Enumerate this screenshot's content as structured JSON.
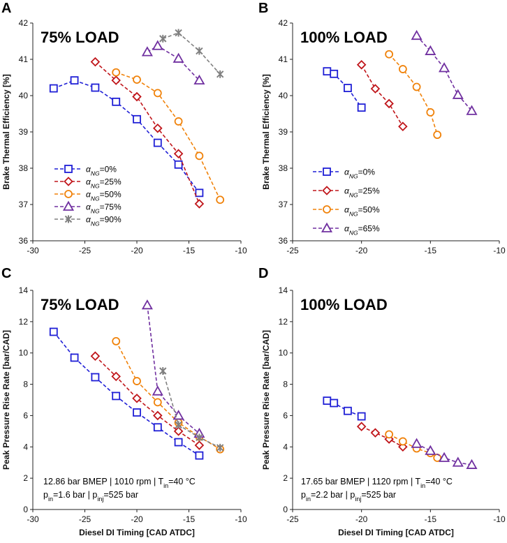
{
  "figure_labels": [
    "A",
    "B",
    "C",
    "D"
  ],
  "conditions_75": {
    "line1_a": "12.86 bar BMEP | 1010 rpm | T",
    "line1_sub": "in",
    "line1_b": "=40 °C",
    "line2_a": "p",
    "line2_sub1": "in",
    "line2_b": "=1.6 bar | p",
    "line2_sub2": "inj",
    "line2_c": "=525 bar"
  },
  "conditions_100": {
    "line1_a": "17.65 bar BMEP | 1120 rpm | T",
    "line1_sub": "in",
    "line1_b": "=40 °C",
    "line2_a": "p",
    "line2_sub1": "in",
    "line2_b": "=2.2 bar | p",
    "line2_sub2": "inj",
    "line2_c": "=525 bar"
  },
  "legend_prefix": "α",
  "legend_sub": "NG",
  "chart_data": [
    {
      "id": "A",
      "type": "line",
      "title": "75% LOAD",
      "xlabel": "",
      "ylabel": "Brake Thermal Efficiency [%]",
      "xlim": [
        -30,
        -10
      ],
      "ylim": [
        36,
        42
      ],
      "xticks": [
        -30,
        -25,
        -20,
        -15,
        -10
      ],
      "yticks": [
        36,
        37,
        38,
        39,
        40,
        41,
        42
      ],
      "legend": true,
      "series": [
        {
          "name": "=0%",
          "color": "#1f1fd6",
          "marker": "square",
          "x": [
            -28,
            -26,
            -24,
            -22,
            -20,
            -18,
            -16,
            -14
          ],
          "y": [
            40.2,
            40.42,
            40.22,
            39.83,
            39.35,
            38.7,
            38.1,
            37.32
          ]
        },
        {
          "name": "=25%",
          "color": "#c0161b",
          "marker": "diamond",
          "x": [
            -24,
            -22,
            -20,
            -18,
            -16,
            -14
          ],
          "y": [
            40.93,
            40.42,
            39.97,
            39.1,
            38.4,
            37.02
          ]
        },
        {
          "name": "=50%",
          "color": "#f0820a",
          "marker": "circle",
          "x": [
            -22,
            -20,
            -18,
            -16,
            -14,
            -12
          ],
          "y": [
            40.64,
            40.44,
            40.07,
            39.29,
            38.34,
            37.13
          ]
        },
        {
          "name": "=75%",
          "color": "#7030a0",
          "marker": "triangle",
          "x": [
            -19,
            -18,
            -16,
            -14
          ],
          "y": [
            41.2,
            41.37,
            41.02,
            40.42
          ]
        },
        {
          "name": "=90%",
          "color": "#808080",
          "marker": "star",
          "x": [
            -17.5,
            -16,
            -14,
            -12
          ],
          "y": [
            41.57,
            41.73,
            41.23,
            40.59
          ]
        }
      ]
    },
    {
      "id": "B",
      "type": "line",
      "title": "100% LOAD",
      "xlabel": "",
      "ylabel": "Brake Thermal Efficiency [%]",
      "xlim": [
        -25,
        -10
      ],
      "ylim": [
        36,
        42
      ],
      "xticks": [
        -25,
        -20,
        -15,
        -10
      ],
      "yticks": [
        36,
        37,
        38,
        39,
        40,
        41,
        42
      ],
      "legend": true,
      "series": [
        {
          "name": "=0%",
          "color": "#1f1fd6",
          "marker": "square",
          "x": [
            -22.5,
            -22,
            -21,
            -20
          ],
          "y": [
            40.67,
            40.6,
            40.21,
            39.67
          ]
        },
        {
          "name": "=25%",
          "color": "#c0161b",
          "marker": "diamond",
          "x": [
            -20,
            -19,
            -18,
            -17
          ],
          "y": [
            40.85,
            40.19,
            39.78,
            39.15
          ]
        },
        {
          "name": "=50%",
          "color": "#f0820a",
          "marker": "circle",
          "x": [
            -18,
            -17,
            -16,
            -15,
            -14.5
          ],
          "y": [
            41.14,
            40.73,
            40.24,
            39.54,
            38.92
          ]
        },
        {
          "name": "=65%",
          "color": "#7030a0",
          "marker": "triangle",
          "x": [
            -16,
            -15,
            -14,
            -13,
            -12
          ],
          "y": [
            41.65,
            41.23,
            40.76,
            40.02,
            39.58
          ]
        }
      ]
    },
    {
      "id": "C",
      "type": "line",
      "title": "75% LOAD",
      "xlabel": "Diesel DI Timing [CAD ATDC]",
      "ylabel": "Peak Pressure Rise Rate [bar/CAD]",
      "xlim": [
        -30,
        -10
      ],
      "ylim": [
        0,
        14
      ],
      "xticks": [
        -30,
        -25,
        -20,
        -15,
        -10
      ],
      "yticks": [
        0,
        2,
        4,
        6,
        8,
        10,
        12,
        14
      ],
      "legend": false,
      "series": [
        {
          "name": "=0%",
          "color": "#1f1fd6",
          "marker": "square",
          "x": [
            -28,
            -26,
            -24,
            -22,
            -20,
            -18,
            -16,
            -14
          ],
          "y": [
            11.35,
            9.7,
            8.45,
            7.25,
            6.2,
            5.25,
            4.3,
            3.45
          ]
        },
        {
          "name": "=25%",
          "color": "#c0161b",
          "marker": "diamond",
          "x": [
            -24,
            -22,
            -20,
            -18,
            -16,
            -14
          ],
          "y": [
            9.8,
            8.5,
            7.1,
            6.0,
            5.0,
            4.1
          ]
        },
        {
          "name": "=50%",
          "color": "#f0820a",
          "marker": "circle",
          "x": [
            -22,
            -20,
            -18,
            -16,
            -14,
            -12
          ],
          "y": [
            10.75,
            8.2,
            6.85,
            5.55,
            4.65,
            3.85
          ]
        },
        {
          "name": "=75%",
          "color": "#7030a0",
          "marker": "triangle",
          "x": [
            -19,
            -18,
            -16,
            -14
          ],
          "y": [
            13.05,
            7.55,
            6.0,
            4.85
          ]
        },
        {
          "name": "=90%",
          "color": "#808080",
          "marker": "star",
          "x": [
            -17.5,
            -16,
            -14,
            -12
          ],
          "y": [
            8.85,
            5.4,
            4.6,
            3.95
          ]
        }
      ]
    },
    {
      "id": "D",
      "type": "line",
      "title": "100% LOAD",
      "xlabel": "Diesel DI Timing [CAD ATDC]",
      "ylabel": "Peak Pressure Rise Rate [bar/CAD]",
      "xlim": [
        -25,
        -10
      ],
      "ylim": [
        0,
        14
      ],
      "xticks": [
        -25,
        -20,
        -15,
        -10
      ],
      "yticks": [
        0,
        2,
        4,
        6,
        8,
        10,
        12,
        14
      ],
      "legend": false,
      "series": [
        {
          "name": "=0%",
          "color": "#1f1fd6",
          "marker": "square",
          "x": [
            -22.5,
            -22,
            -21,
            -20
          ],
          "y": [
            6.95,
            6.8,
            6.3,
            5.95
          ]
        },
        {
          "name": "=25%",
          "color": "#c0161b",
          "marker": "diamond",
          "x": [
            -20,
            -19,
            -18,
            -17
          ],
          "y": [
            5.3,
            4.9,
            4.5,
            4.0
          ]
        },
        {
          "name": "=50%",
          "color": "#f0820a",
          "marker": "circle",
          "x": [
            -18,
            -17,
            -16,
            -15,
            -14.5
          ],
          "y": [
            4.8,
            4.35,
            3.9,
            3.6,
            3.3
          ]
        },
        {
          "name": "=65%",
          "color": "#7030a0",
          "marker": "triangle",
          "x": [
            -16,
            -15,
            -14,
            -13,
            -12
          ],
          "y": [
            4.2,
            3.75,
            3.3,
            3.0,
            2.85
          ]
        }
      ]
    }
  ]
}
